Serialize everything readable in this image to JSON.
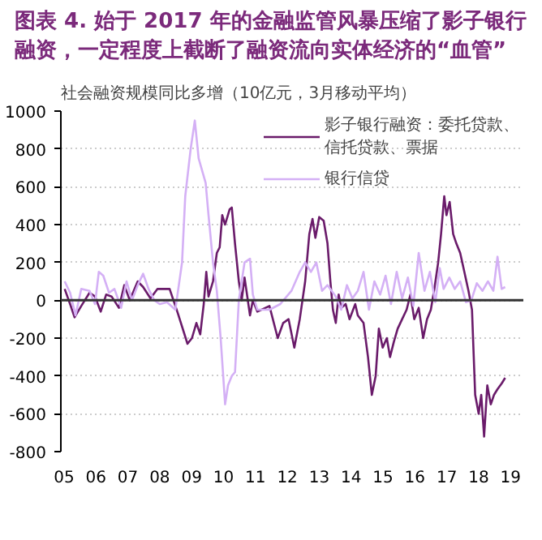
{
  "chart_data": {
    "type": "line",
    "title": "图表 4. 始于 2017 年的金融监管风暴压缩了影子银行融资，一定程度上截断了融资流向实体经济的“血管”",
    "subtitle": "社会融资规模同比多增（10亿元，3月移动平均）",
    "xlim": [
      2004.9,
      2019.4
    ],
    "xticks": [
      {
        "value": 2005,
        "label": "05"
      },
      {
        "value": 2006,
        "label": "06"
      },
      {
        "value": 2007,
        "label": "07"
      },
      {
        "value": 2008,
        "label": "08"
      },
      {
        "value": 2009,
        "label": "09"
      },
      {
        "value": 2010,
        "label": "10"
      },
      {
        "value": 2011,
        "label": "11"
      },
      {
        "value": 2012,
        "label": "12"
      },
      {
        "value": 2013,
        "label": "13"
      },
      {
        "value": 2014,
        "label": "14"
      },
      {
        "value": 2015,
        "label": "15"
      },
      {
        "value": 2016,
        "label": "16"
      },
      {
        "value": 2017,
        "label": "17"
      },
      {
        "value": 2018,
        "label": "18"
      },
      {
        "value": 2019,
        "label": "19"
      }
    ],
    "ylim": [
      -800,
      1000
    ],
    "yticks": [
      -800,
      -600,
      -400,
      -200,
      0,
      200,
      400,
      600,
      800,
      1000
    ],
    "grid": true,
    "legend": "top right",
    "ref_lines": [
      {
        "axis": "y",
        "value": 0,
        "color": "#333333"
      }
    ],
    "series": [
      {
        "name": "影子银行融资：委托贷款、信托贷款、票据",
        "color": "#6a1b6a",
        "x": [
          2005.02,
          2005.19,
          2005.33,
          2005.54,
          2005.8,
          2005.97,
          2006.15,
          2006.32,
          2006.49,
          2006.72,
          2006.89,
          2007.06,
          2007.31,
          2007.48,
          2007.71,
          2007.93,
          2008.31,
          2008.57,
          2008.87,
          2009.01,
          2009.15,
          2009.27,
          2009.38,
          2009.46,
          2009.53,
          2009.67,
          2009.79,
          2009.88,
          2009.96,
          2010.05,
          2010.19,
          2010.26,
          2010.36,
          2010.48,
          2010.57,
          2010.66,
          2010.83,
          2010.92,
          2011.06,
          2011.44,
          2011.7,
          2011.87,
          2012.04,
          2012.22,
          2012.39,
          2012.56,
          2012.69,
          2012.79,
          2012.88,
          2013.0,
          2013.14,
          2013.26,
          2013.35,
          2013.43,
          2013.52,
          2013.61,
          2013.69,
          2013.83,
          2013.95,
          2014.13,
          2014.21,
          2014.39,
          2014.53,
          2014.65,
          2014.77,
          2014.87,
          2014.99,
          2015.12,
          2015.22,
          2015.34,
          2015.46,
          2015.6,
          2015.74,
          2015.86,
          2015.98,
          2016.12,
          2016.26,
          2016.38,
          2016.5,
          2016.61,
          2016.73,
          2016.82,
          2016.92,
          2016.99,
          2017.09,
          2017.2,
          2017.3,
          2017.42,
          2017.55,
          2017.68,
          2017.79,
          2017.89,
          2018.0,
          2018.08,
          2018.17,
          2018.27,
          2018.38,
          2018.48,
          2018.59,
          2018.72,
          2018.83
        ],
        "values": [
          60,
          -20,
          -90,
          -30,
          40,
          20,
          -60,
          30,
          20,
          -40,
          80,
          0,
          100,
          70,
          10,
          60,
          60,
          -70,
          -230,
          -200,
          -120,
          -180,
          -20,
          150,
          20,
          100,
          250,
          280,
          450,
          400,
          480,
          490,
          300,
          100,
          0,
          120,
          -80,
          0,
          -60,
          -30,
          -200,
          -120,
          -100,
          -250,
          -100,
          100,
          350,
          430,
          330,
          440,
          420,
          300,
          100,
          -50,
          -120,
          30,
          -40,
          -20,
          -100,
          -20,
          -80,
          -120,
          -300,
          -500,
          -400,
          -150,
          -250,
          -200,
          -300,
          -220,
          -150,
          -100,
          -50,
          30,
          -100,
          -40,
          -200,
          -100,
          -50,
          60,
          200,
          350,
          550,
          450,
          520,
          350,
          300,
          250,
          150,
          50,
          -50,
          -500,
          -600,
          -500,
          -720,
          -450,
          -550,
          -500,
          -470,
          -440,
          -410
        ]
      },
      {
        "name": "银行信贷",
        "color": "#d4b0f5",
        "x": [
          2005.02,
          2005.19,
          2005.36,
          2005.54,
          2005.8,
          2005.97,
          2006.09,
          2006.23,
          2006.41,
          2006.58,
          2006.79,
          2006.96,
          2007.13,
          2007.31,
          2007.48,
          2007.65,
          2007.83,
          2008.0,
          2008.23,
          2008.49,
          2008.7,
          2008.8,
          2008.97,
          2009.1,
          2009.22,
          2009.44,
          2009.53,
          2009.67,
          2009.79,
          2009.91,
          2010.05,
          2010.14,
          2010.26,
          2010.36,
          2010.48,
          2010.66,
          2010.83,
          2010.92,
          2011.06,
          2011.44,
          2011.78,
          2012.13,
          2012.39,
          2012.56,
          2012.74,
          2012.91,
          2013.09,
          2013.26,
          2013.52,
          2013.69,
          2013.87,
          2014.04,
          2014.21,
          2014.39,
          2014.56,
          2014.73,
          2014.91,
          2015.08,
          2015.25,
          2015.43,
          2015.6,
          2015.78,
          2015.95,
          2016.12,
          2016.3,
          2016.47,
          2016.64,
          2016.78,
          2016.9,
          2017.08,
          2017.25,
          2017.42,
          2017.6,
          2017.77,
          2017.94,
          2018.12,
          2018.29,
          2018.46,
          2018.59,
          2018.72,
          2018.83
        ],
        "values": [
          100,
          40,
          -80,
          60,
          50,
          -20,
          150,
          130,
          40,
          60,
          -40,
          100,
          0,
          80,
          140,
          60,
          0,
          -20,
          -10,
          -50,
          200,
          550,
          800,
          950,
          750,
          620,
          450,
          200,
          50,
          -200,
          -550,
          -450,
          -400,
          -380,
          0,
          200,
          220,
          30,
          -50,
          -50,
          -20,
          50,
          150,
          200,
          150,
          200,
          50,
          80,
          20,
          -50,
          80,
          10,
          50,
          150,
          -50,
          100,
          30,
          130,
          -20,
          150,
          10,
          120,
          -30,
          250,
          50,
          150,
          -10,
          170,
          60,
          120,
          60,
          100,
          -10,
          0,
          90,
          50,
          100,
          50,
          230,
          60,
          70
        ]
      }
    ]
  }
}
